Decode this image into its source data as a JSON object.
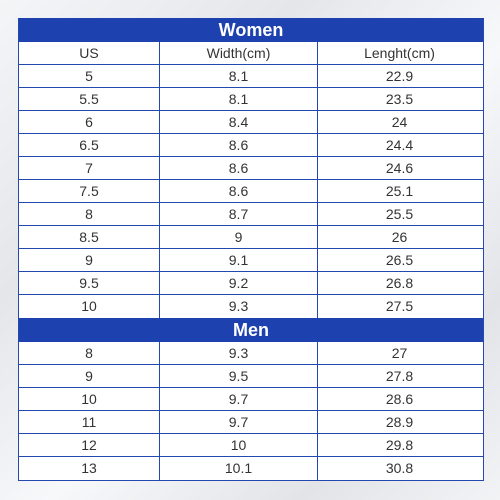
{
  "sections": [
    {
      "title": "Women",
      "header": [
        "US",
        "Width(cm)",
        "Lenght(cm)"
      ],
      "rows": [
        [
          "5",
          "8.1",
          "22.9"
        ],
        [
          "5.5",
          "8.1",
          "23.5"
        ],
        [
          "6",
          "8.4",
          "24"
        ],
        [
          "6.5",
          "8.6",
          "24.4"
        ],
        [
          "7",
          "8.6",
          "24.6"
        ],
        [
          "7.5",
          "8.6",
          "25.1"
        ],
        [
          "8",
          "8.7",
          "25.5"
        ],
        [
          "8.5",
          "9",
          "26"
        ],
        [
          "9",
          "9.1",
          "26.5"
        ],
        [
          "9.5",
          "9.2",
          "26.8"
        ],
        [
          "10",
          "9.3",
          "27.5"
        ]
      ]
    },
    {
      "title": "Men",
      "rows": [
        [
          "8",
          "9.3",
          "27"
        ],
        [
          "9",
          "9.5",
          "27.8"
        ],
        [
          "10",
          "9.7",
          "28.6"
        ],
        [
          "11",
          "9.7",
          "28.9"
        ],
        [
          "12",
          "10",
          "29.8"
        ],
        [
          "13",
          "10.1",
          "30.8"
        ]
      ]
    }
  ]
}
